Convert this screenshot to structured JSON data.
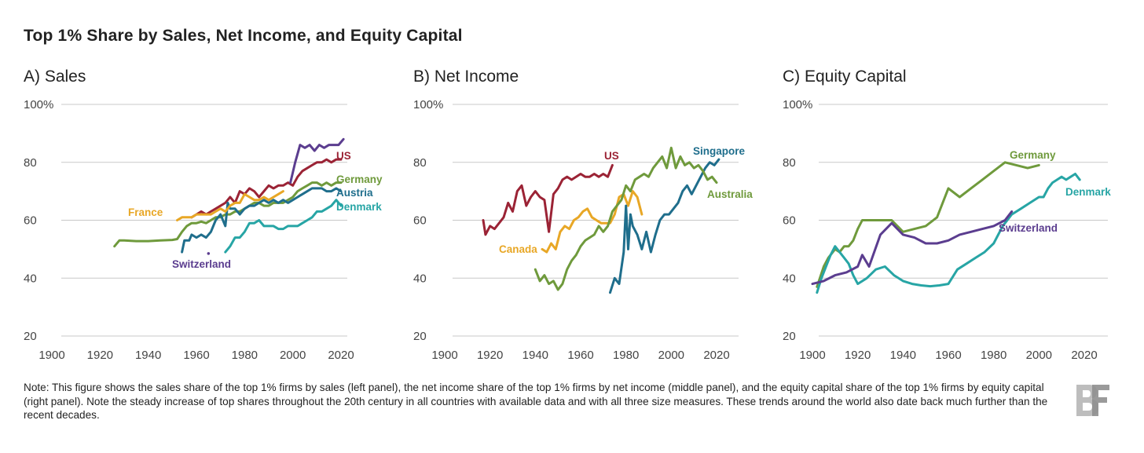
{
  "title": "Top 1% Share by Sales, Net Income, and Equity Capital",
  "note": "Note: This figure shows the sales share of the top 1% firms by sales (left panel), the net income share of the top 1% firms by net income (middle panel), and the equity capital share of the top 1% firms by equity capital (right panel). Note the steady increase of top shares throughout the 20th century in all countries with available data and with all three size measures. These trends around the world also date back much further than the recent decades.",
  "logo_text": "BF",
  "colors": {
    "US": "#9b2335",
    "Germany": "#6f9a3c",
    "Austria": "#1f6e8c",
    "Denmark": "#27a5a5",
    "France": "#e8a726",
    "Switzerland": "#5b3d8f",
    "Canada": "#e8a726",
    "Singapore": "#1f6e8c",
    "Australia": "#6f9a3c"
  },
  "chart_data": [
    {
      "type": "line",
      "title": "A) Sales",
      "xlim": [
        1900,
        2020
      ],
      "ylim": [
        20,
        100
      ],
      "x_ticks": [
        "1900",
        "1920",
        "1940",
        "1960",
        "1980",
        "2000",
        "2020"
      ],
      "y_ticks": [
        "20",
        "40",
        "60",
        "80",
        "100%"
      ],
      "grid": true,
      "series": [
        {
          "name": "US",
          "label": "US",
          "x": [
            1958,
            1960,
            1962,
            1964,
            1966,
            1968,
            1970,
            1972,
            1974,
            1976,
            1978,
            1980,
            1982,
            1984,
            1986,
            1988,
            1990,
            1992,
            1994,
            1996,
            1998,
            2000,
            2002,
            2004,
            2006,
            2008,
            2010,
            2012,
            2014,
            2016,
            2018,
            2020
          ],
          "y": [
            61,
            62,
            63,
            62,
            63,
            64,
            65,
            66,
            68,
            66,
            70,
            69,
            71,
            70,
            68,
            70,
            72,
            71,
            72,
            72,
            73,
            72,
            75,
            77,
            78,
            79,
            80,
            80,
            81,
            80,
            81,
            81
          ]
        },
        {
          "name": "Germany",
          "label": "Germany",
          "x": [
            1926,
            1928,
            1930,
            1935,
            1940,
            1945,
            1950,
            1952,
            1954,
            1956,
            1958,
            1960,
            1962,
            1964,
            1966,
            1968,
            1970,
            1972,
            1974,
            1976,
            1978,
            1980,
            1982,
            1984,
            1986,
            1988,
            1990,
            1992,
            1994,
            1996,
            1998,
            2000,
            2002,
            2004,
            2006,
            2008,
            2010,
            2012,
            2014,
            2016,
            2018,
            2020
          ],
          "y": [
            51,
            53,
            53,
            52.8,
            52.8,
            53,
            53.2,
            53.5,
            56,
            58,
            59,
            59,
            59.5,
            59,
            60,
            61,
            61,
            62,
            62,
            63,
            63,
            64,
            65,
            66,
            66,
            65,
            65,
            66,
            66,
            66,
            67,
            68,
            70,
            71,
            72,
            73,
            73,
            72,
            73,
            72,
            73,
            73
          ]
        },
        {
          "name": "Austria",
          "label": "Austria",
          "x": [
            1954,
            1955,
            1957,
            1958,
            1960,
            1962,
            1964,
            1966,
            1968,
            1970,
            1972,
            1973,
            1974,
            1976,
            1978,
            1980,
            1982,
            1984,
            1986,
            1988,
            1990,
            1992,
            1994,
            1996,
            1998,
            2000,
            2002,
            2004,
            2006,
            2008,
            2010,
            2012,
            2014,
            2016,
            2018,
            2020
          ],
          "y": [
            49,
            53,
            53,
            55,
            54,
            55,
            54,
            56,
            60,
            62,
            58,
            66,
            64,
            64,
            62,
            64,
            65,
            65,
            66,
            67,
            66,
            67,
            66,
            67,
            66,
            67,
            68,
            69,
            70,
            71,
            71,
            71,
            70,
            70,
            71,
            70
          ]
        },
        {
          "name": "Denmark",
          "label": "Denmark",
          "x": [
            1972,
            1974,
            1976,
            1978,
            1980,
            1982,
            1984,
            1986,
            1988,
            1990,
            1992,
            1994,
            1996,
            1998,
            2000,
            2002,
            2004,
            2006,
            2008,
            2010,
            2012,
            2014,
            2016,
            2018,
            2020
          ],
          "y": [
            49,
            51,
            54,
            54,
            56,
            59,
            59,
            60,
            58,
            58,
            58,
            57,
            57,
            58,
            58,
            58,
            59,
            60,
            61,
            63,
            63,
            64,
            65,
            67,
            65
          ]
        },
        {
          "name": "France",
          "label": "France",
          "x": [
            1952,
            1954,
            1956,
            1958,
            1960,
            1962,
            1964,
            1966,
            1968,
            1970,
            1972,
            1974,
            1976,
            1978,
            1980,
            1982,
            1984,
            1986,
            1988,
            1990,
            1992,
            1994,
            1996
          ],
          "y": [
            60,
            61,
            61,
            61,
            62,
            62,
            62,
            62,
            63,
            64,
            63,
            65,
            66,
            66,
            69,
            68,
            67,
            67,
            68,
            67,
            68,
            69,
            70
          ]
        },
        {
          "name": "Switzerland",
          "label": "Switzerland",
          "x": [
            1999,
            2001,
            2003,
            2005,
            2007,
            2009,
            2011,
            2013,
            2015,
            2017,
            2019,
            2021
          ],
          "y": [
            73,
            80,
            86,
            85,
            86,
            84,
            86,
            85,
            86,
            86,
            86,
            88
          ]
        }
      ]
    },
    {
      "type": "line",
      "title": "B) Net Income",
      "xlim": [
        1900,
        2020
      ],
      "ylim": [
        20,
        100
      ],
      "x_ticks": [
        "1900",
        "1920",
        "1940",
        "1960",
        "1980",
        "2000",
        "2020"
      ],
      "y_ticks": [
        "20",
        "40",
        "60",
        "80",
        "100%"
      ],
      "grid": true,
      "series": [
        {
          "name": "US",
          "label": "US",
          "x": [
            1917,
            1918,
            1920,
            1922,
            1924,
            1926,
            1928,
            1930,
            1932,
            1934,
            1936,
            1938,
            1940,
            1942,
            1944,
            1946,
            1948,
            1950,
            1952,
            1954,
            1956,
            1958,
            1960,
            1962,
            1964,
            1966,
            1968,
            1970,
            1972,
            1974
          ],
          "y": [
            60,
            55,
            58,
            57,
            59,
            61,
            66,
            63,
            70,
            72,
            65,
            68,
            70,
            68,
            67,
            56,
            69,
            71,
            74,
            75,
            74,
            75,
            76,
            75,
            75,
            76,
            75,
            76,
            75,
            79
          ]
        },
        {
          "name": "Canada",
          "label": "Canada",
          "x": [
            1943,
            1945,
            1947,
            1949,
            1951,
            1953,
            1955,
            1957,
            1959,
            1961,
            1963,
            1965,
            1967,
            1969,
            1971,
            1973,
            1975,
            1977,
            1979,
            1981,
            1983,
            1985,
            1987
          ],
          "y": [
            50,
            49,
            52,
            50,
            56,
            58,
            57,
            60,
            61,
            63,
            64,
            61,
            60,
            59,
            59,
            59,
            62,
            68,
            69,
            65,
            70,
            68,
            62
          ]
        },
        {
          "name": "Singapore",
          "label": "Singapore",
          "x": [
            1973,
            1975,
            1977,
            1979,
            1980,
            1981,
            1982,
            1983,
            1985,
            1987,
            1989,
            1991,
            1993,
            1995,
            1997,
            1999,
            2001,
            2003,
            2005,
            2007,
            2009,
            2011,
            2013,
            2015,
            2017,
            2019,
            2021
          ],
          "y": [
            35,
            40,
            38,
            49,
            65,
            50,
            62,
            58,
            55,
            50,
            56,
            49,
            55,
            60,
            62,
            62,
            64,
            66,
            70,
            72,
            69,
            72,
            75,
            78,
            80,
            79,
            81
          ]
        },
        {
          "name": "Australia",
          "label": "Australia",
          "x": [
            1940,
            1942,
            1944,
            1946,
            1948,
            1950,
            1952,
            1954,
            1956,
            1958,
            1960,
            1962,
            1964,
            1966,
            1968,
            1970,
            1972,
            1974,
            1976,
            1978,
            1980,
            1982,
            1984,
            1986,
            1988,
            1990,
            1992,
            1994,
            1996,
            1998,
            2000,
            2002,
            2004,
            2006,
            2008,
            2010,
            2012,
            2014,
            2016,
            2018,
            2020
          ],
          "y": [
            43,
            39,
            41,
            38,
            39,
            36,
            38,
            43,
            46,
            48,
            51,
            53,
            54,
            55,
            58,
            56,
            58,
            63,
            65,
            67,
            72,
            70,
            74,
            75,
            76,
            75,
            78,
            80,
            82,
            78,
            85,
            78,
            82,
            79,
            80,
            78,
            79,
            77,
            74,
            75,
            73
          ]
        }
      ]
    },
    {
      "type": "line",
      "title": "C) Equity Capital",
      "xlim": [
        1900,
        2020
      ],
      "ylim": [
        20,
        100
      ],
      "x_ticks": [
        "1900",
        "1920",
        "1940",
        "1960",
        "1980",
        "2000",
        "2020"
      ],
      "y_ticks": [
        "20",
        "40",
        "60",
        "80",
        "100%"
      ],
      "grid": true,
      "series": [
        {
          "name": "Germany",
          "label": "Germany",
          "x": [
            1902,
            1905,
            1907,
            1910,
            1912,
            1914,
            1916,
            1918,
            1920,
            1922,
            1930,
            1935,
            1940,
            1945,
            1950,
            1955,
            1960,
            1965,
            1970,
            1975,
            1980,
            1985,
            1990,
            1995,
            2000
          ],
          "y": [
            37,
            44,
            47,
            50,
            49,
            51,
            51,
            53,
            57,
            60,
            60,
            60,
            56,
            57,
            58,
            61,
            71,
            68,
            71,
            74,
            77,
            80,
            79,
            78,
            79
          ]
        },
        {
          "name": "Denmark",
          "label": "Denmark",
          "x": [
            1902,
            1904,
            1906,
            1908,
            1910,
            1912,
            1914,
            1916,
            1918,
            1920,
            1924,
            1928,
            1932,
            1936,
            1940,
            1944,
            1948,
            1952,
            1956,
            1960,
            1964,
            1968,
            1972,
            1976,
            1980,
            1984,
            1988,
            1992,
            1996,
            2000,
            2002,
            2004,
            2006,
            2008,
            2010,
            2012,
            2014,
            2016,
            2018
          ],
          "y": [
            35,
            40,
            44,
            48,
            51,
            49,
            47,
            45,
            41,
            38,
            40,
            43,
            44,
            41,
            39,
            38,
            37.5,
            37.2,
            37.5,
            38,
            43,
            45,
            47,
            49,
            52,
            58,
            62,
            64,
            66,
            68,
            68,
            71,
            73,
            74,
            75,
            74,
            75,
            76,
            74
          ]
        },
        {
          "name": "Switzerland",
          "label": "Switzerland",
          "x": [
            1900,
            1905,
            1910,
            1915,
            1920,
            1922,
            1925,
            1930,
            1935,
            1940,
            1945,
            1950,
            1955,
            1960,
            1965,
            1970,
            1975,
            1980,
            1985,
            1988
          ],
          "y": [
            38,
            39,
            41,
            42,
            44,
            48,
            44,
            55,
            59,
            55,
            54,
            52,
            52,
            53,
            55,
            56,
            57,
            58,
            60,
            63
          ]
        }
      ]
    }
  ]
}
